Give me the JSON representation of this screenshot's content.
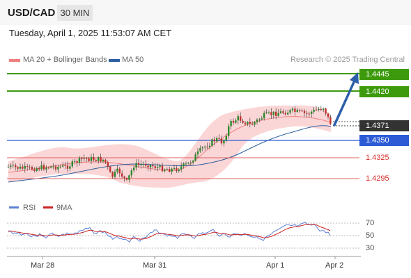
{
  "header": {
    "symbol": "USD/CAD",
    "timeframe": "30 MIN",
    "datetime": "Tuesday, April 1, 2025 11:53:07 AM CET"
  },
  "legend": {
    "ma20_label": "MA 20 + Bollinger Bands",
    "ma50_label": "MA 50",
    "credit": "Research © 2025 Trading Central"
  },
  "levels": {
    "target2": "1.4445",
    "target1": "1.4420",
    "current": "1.4371",
    "pivot": "1.4350",
    "support1": "1.4325",
    "support2": "1.4295"
  },
  "rsi": {
    "label": "RSI",
    "ma_label": "9MA",
    "ticks": [
      "70",
      "50",
      "30"
    ]
  },
  "xaxis": {
    "labels": [
      "Mar 28",
      "Mar 31",
      "Apr 1",
      "Apr 2"
    ]
  },
  "colors": {
    "resistance": "#3c9a0c",
    "pivot": "#2d5bd6",
    "support": "#e06060",
    "current": "#333333",
    "arrow": "#2c5fa8",
    "bollinger": "#f9c8c8",
    "ma20": "#f08080",
    "ma50": "#2d5fa0",
    "rsi_line": "#5b7fd6",
    "rsi_ma": "#cc2222"
  },
  "icons": {
    "forecast_arrow": "arrow-up-right-icon"
  }
}
